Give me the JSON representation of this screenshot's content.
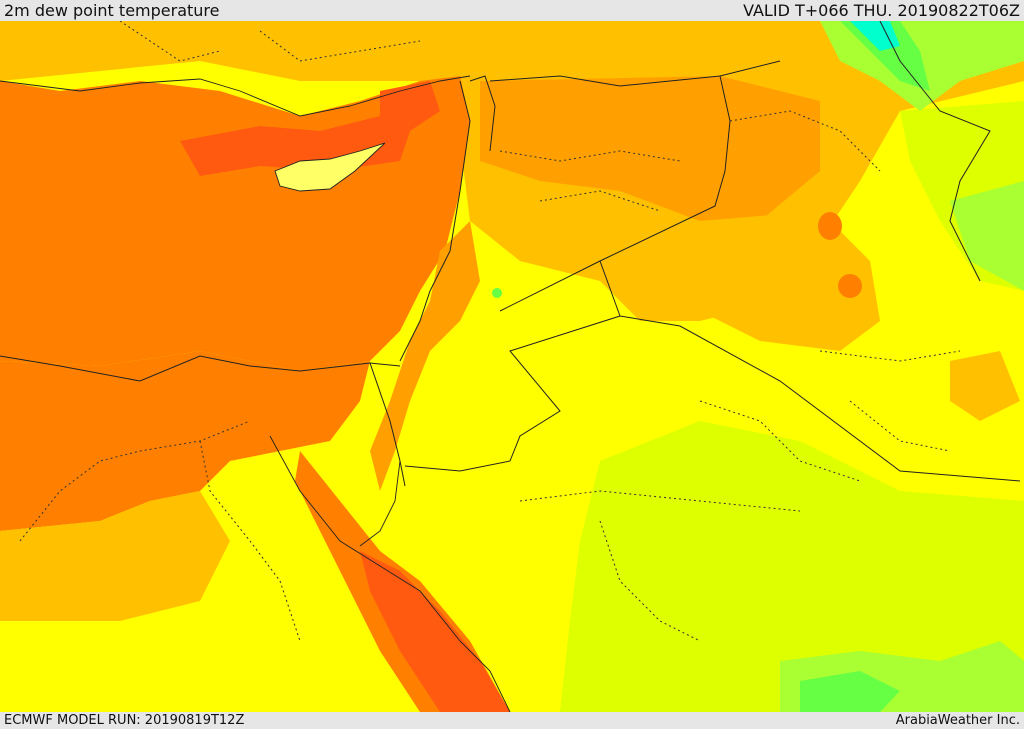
{
  "header": {
    "title": "2m dew point temperature",
    "valid": "VALID T+066 THU. 20190822T06Z"
  },
  "footer": {
    "model_run": "ECMWF MODEL RUN: 20190819T12Z",
    "credit": "ArabiaWeather Inc."
  },
  "colors": {
    "sea_orange": "#ff8000",
    "dark_orange": "#ff5a10",
    "mid_orange": "#ffa000",
    "light_orange": "#ffc000",
    "yellow": "#ffff00",
    "yellow_green": "#ddff00",
    "light_green": "#aaff33",
    "green": "#66ff44",
    "cyan": "#00ffcc",
    "border_line": "#222222"
  }
}
